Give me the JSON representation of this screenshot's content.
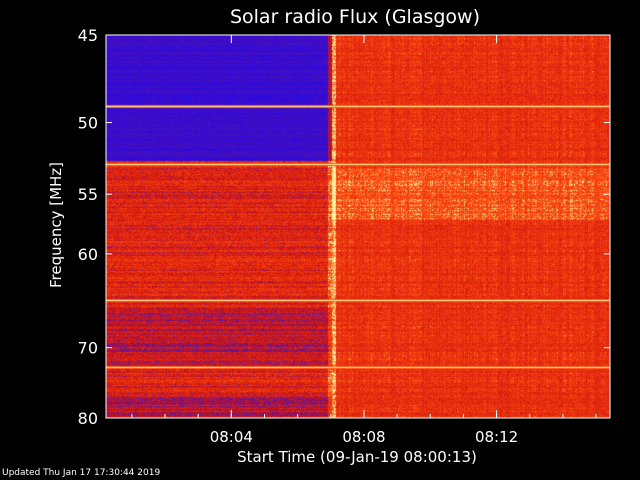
{
  "updated_text": "Updated Thu Jan 17 17:30:44 2019",
  "chart_data": {
    "type": "heatmap",
    "title": "Solar radio Flux (Glasgow)",
    "xlabel": "Start Time (09-Jan-19 08:00:13)",
    "ylabel": "Frequency [MHz]",
    "x_unit": "minutes after start",
    "xlim": [
      0,
      15.2
    ],
    "ylim": [
      45,
      80
    ],
    "y_scale": "reciprocal",
    "x_ticks": [
      {
        "label": "08:04",
        "value": 3.78
      },
      {
        "label": "08:08",
        "value": 7.78
      },
      {
        "label": "08:12",
        "value": 11.78
      }
    ],
    "y_ticks": [
      {
        "label": "45",
        "value": 45
      },
      {
        "label": "50",
        "value": 50
      },
      {
        "label": "55",
        "value": 55
      },
      {
        "label": "60",
        "value": 60
      },
      {
        "label": "70",
        "value": 70
      },
      {
        "label": "80",
        "value": 80
      }
    ],
    "colors": {
      "low": "#1010ff",
      "mid": "#d01010",
      "high": "#ffe080",
      "background": "#000000"
    },
    "transition_time": 6.8,
    "intensity_levels": {
      "before_transition": "low (blue) in 45-52 MHz band, mixed red/blue below",
      "after_transition": "high (red/orange)"
    },
    "bright_lines_mhz": [
      49.0,
      52.8,
      64.5,
      72.5
    ],
    "blue_bands_before_mhz": [
      [
        45.2,
        52.5
      ],
      [
        65.5,
        72.4
      ],
      [
        76.5,
        80
      ]
    ]
  }
}
